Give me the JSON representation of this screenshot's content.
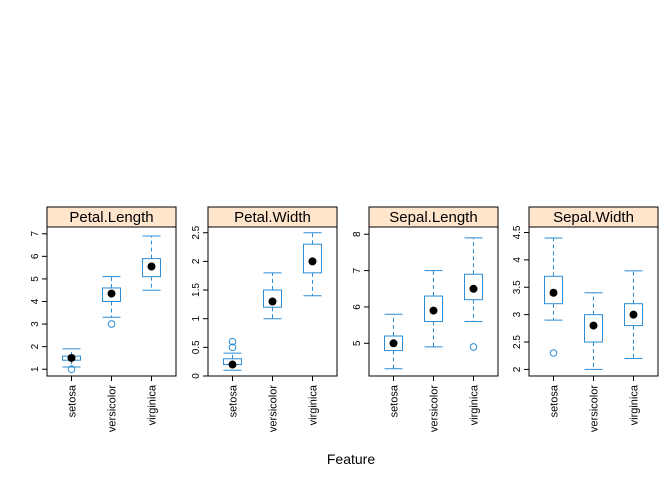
{
  "chart_data": {
    "type": "boxplot",
    "xlabel": "Feature",
    "categories": [
      "setosa",
      "versicolor",
      "virginica"
    ],
    "colors": {
      "box": "#2b8cd6",
      "strip_fill": "#ffe5cc",
      "median_dot": "#000000"
    },
    "panels": [
      {
        "name": "Petal.Length",
        "ylim": [
          0.7,
          7.3
        ],
        "yticks": [
          1,
          2,
          3,
          4,
          5,
          6,
          7
        ],
        "boxes": [
          {
            "category": "setosa",
            "whisker_low": 1.1,
            "q1": 1.4,
            "median": 1.5,
            "q3": 1.58,
            "whisker_high": 1.9,
            "outliers": [
              1.0
            ]
          },
          {
            "category": "versicolor",
            "whisker_low": 3.3,
            "q1": 4.0,
            "median": 4.35,
            "q3": 4.6,
            "whisker_high": 5.1,
            "outliers": [
              3.0
            ]
          },
          {
            "category": "virginica",
            "whisker_low": 4.5,
            "q1": 5.1,
            "median": 5.55,
            "q3": 5.9,
            "whisker_high": 6.9,
            "outliers": []
          }
        ]
      },
      {
        "name": "Petal.Width",
        "ylim": [
          0.0,
          2.6
        ],
        "yticks": [
          0.0,
          0.5,
          1.0,
          1.5,
          2.0,
          2.5
        ],
        "boxes": [
          {
            "category": "setosa",
            "whisker_low": 0.1,
            "q1": 0.2,
            "median": 0.2,
            "q3": 0.3,
            "whisker_high": 0.4,
            "outliers": [
              0.5,
              0.6
            ]
          },
          {
            "category": "versicolor",
            "whisker_low": 1.0,
            "q1": 1.2,
            "median": 1.3,
            "q3": 1.5,
            "whisker_high": 1.8,
            "outliers": []
          },
          {
            "category": "virginica",
            "whisker_low": 1.4,
            "q1": 1.8,
            "median": 2.0,
            "q3": 2.3,
            "whisker_high": 2.5,
            "outliers": []
          }
        ]
      },
      {
        "name": "Sepal.Length",
        "ylim": [
          4.1,
          8.2
        ],
        "yticks": [
          5,
          6,
          7,
          8
        ],
        "boxes": [
          {
            "category": "setosa",
            "whisker_low": 4.3,
            "q1": 4.8,
            "median": 5.0,
            "q3": 5.2,
            "whisker_high": 5.8,
            "outliers": []
          },
          {
            "category": "versicolor",
            "whisker_low": 4.9,
            "q1": 5.6,
            "median": 5.9,
            "q3": 6.3,
            "whisker_high": 7.0,
            "outliers": []
          },
          {
            "category": "virginica",
            "whisker_low": 5.6,
            "q1": 6.2,
            "median": 6.5,
            "q3": 6.9,
            "whisker_high": 7.9,
            "outliers": [
              4.9
            ]
          }
        ]
      },
      {
        "name": "Sepal.Width",
        "ylim": [
          1.88,
          4.6
        ],
        "yticks": [
          2.0,
          2.5,
          3.0,
          3.5,
          4.0,
          4.5
        ],
        "boxes": [
          {
            "category": "setosa",
            "whisker_low": 2.9,
            "q1": 3.2,
            "median": 3.4,
            "q3": 3.7,
            "whisker_high": 4.4,
            "outliers": [
              2.3
            ]
          },
          {
            "category": "versicolor",
            "whisker_low": 2.0,
            "q1": 2.5,
            "median": 2.8,
            "q3": 3.0,
            "whisker_high": 3.4,
            "outliers": []
          },
          {
            "category": "virginica",
            "whisker_low": 2.2,
            "q1": 2.8,
            "median": 3.0,
            "q3": 3.2,
            "whisker_high": 3.8,
            "outliers": []
          }
        ]
      }
    ]
  }
}
